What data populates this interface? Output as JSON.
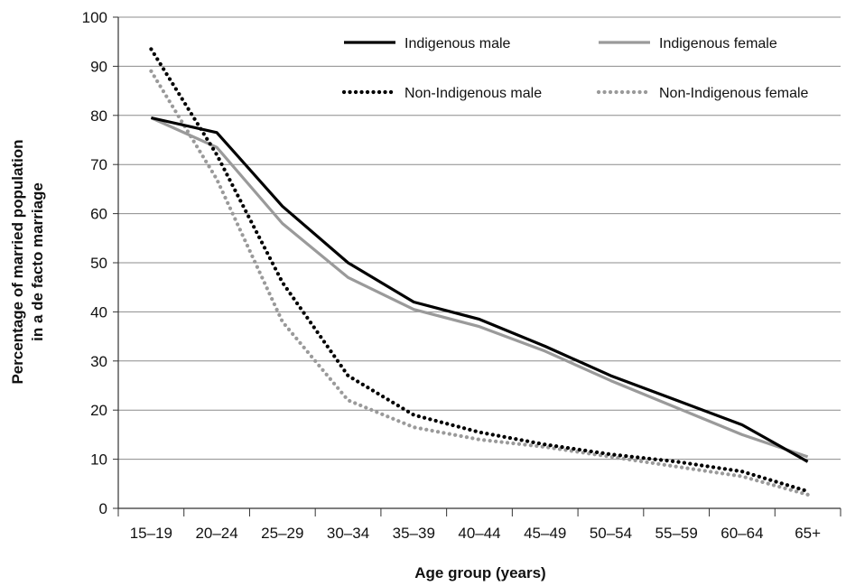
{
  "chart_data": {
    "type": "line",
    "xlabel": "Age group (years)",
    "ylabel_line1": "Percentage of married population",
    "ylabel_line2": "in a  de facto marriage",
    "ylim": [
      0,
      100
    ],
    "yticks": [
      0,
      10,
      20,
      30,
      40,
      50,
      60,
      70,
      80,
      90,
      100
    ],
    "categories": [
      "15–19",
      "20–24",
      "25–29",
      "30–34",
      "35–39",
      "40–44",
      "45–49",
      "50–54",
      "55–59",
      "60–64",
      "65+"
    ],
    "grid": "horizontal",
    "legend_position": "top-right",
    "series": [
      {
        "name": "Indigenous male",
        "color": "#000000",
        "style": "solid",
        "values": [
          79.5,
          76.5,
          61.5,
          50,
          42,
          38.5,
          33,
          27,
          22,
          17,
          9.5
        ]
      },
      {
        "name": "Indigenous female",
        "color": "#9a9a9a",
        "style": "solid",
        "values": [
          79.5,
          73.5,
          58,
          47,
          40.5,
          37,
          32,
          26,
          20.5,
          15,
          10.5
        ]
      },
      {
        "name": "Non-Indigenous male",
        "color": "#000000",
        "style": "dotted",
        "values": [
          93.5,
          72,
          46,
          27,
          19,
          15.5,
          13,
          11,
          9.5,
          7.5,
          3.5
        ]
      },
      {
        "name": "Non-Indigenous female",
        "color": "#9a9a9a",
        "style": "dotted",
        "values": [
          89,
          67,
          38,
          22,
          16.5,
          14,
          12.5,
          10.5,
          8.5,
          6.5,
          2.8
        ]
      }
    ]
  }
}
